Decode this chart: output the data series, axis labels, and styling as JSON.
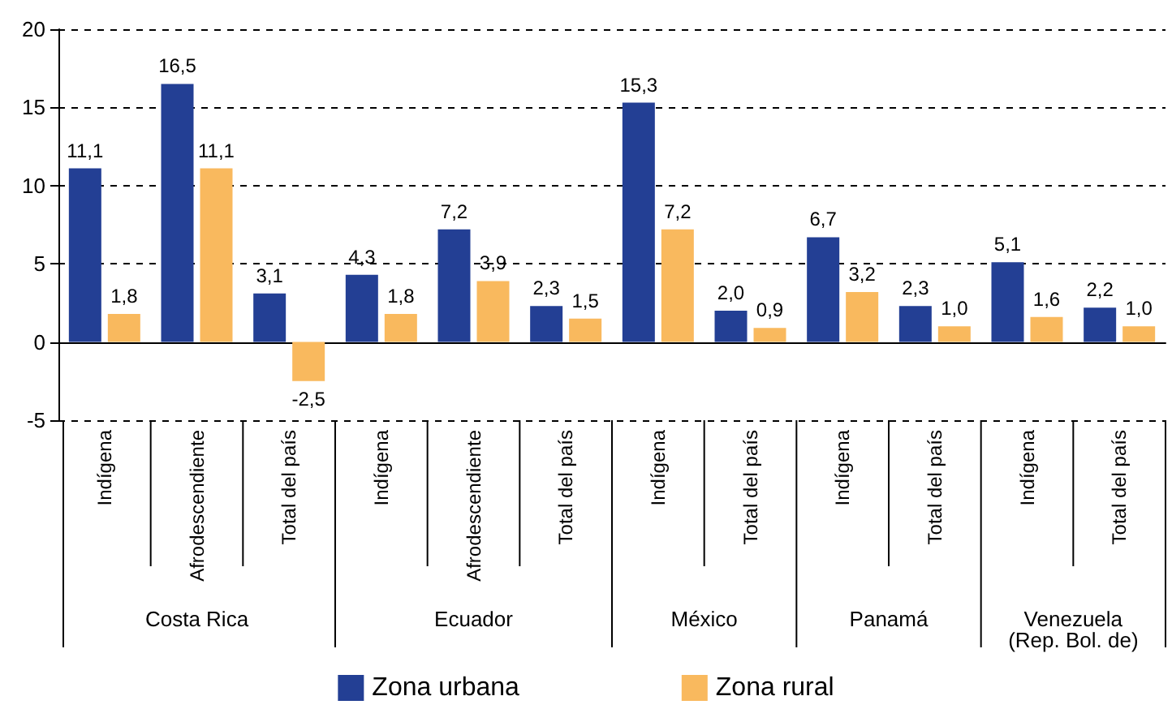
{
  "chart_data": {
    "type": "bar",
    "categories": [
      "Indígena",
      "Afrodescendiente",
      "Total del país",
      "Indígena",
      "Afrodescendiente",
      "Total del país",
      "Indígena",
      "Total del país",
      "Indígena",
      "Total del país",
      "Indígena",
      "Total del país"
    ],
    "series": [
      {
        "name": "Zona urbana",
        "color": "#233f94",
        "values": [
          11.1,
          16.5,
          3.1,
          4.3,
          7.2,
          2.3,
          15.3,
          2.0,
          6.7,
          2.3,
          5.1,
          2.2
        ],
        "value_labels": [
          "11,1",
          "16,5",
          "3,1",
          "4,3",
          "7,2",
          "2,3",
          "15,3",
          "2,0",
          "6,7",
          "2,3",
          "5,1",
          "2,2"
        ]
      },
      {
        "name": "Zona rural",
        "color": "#f9b95e",
        "values": [
          1.8,
          11.1,
          -2.5,
          1.8,
          3.9,
          1.5,
          7.2,
          0.9,
          3.2,
          1.0,
          1.6,
          1.0
        ],
        "value_labels": [
          "1,8",
          "11,1",
          "-2,5",
          "1,8",
          "3,9",
          "1,5",
          "7,2",
          "0,9",
          "3,2",
          "1,0",
          "1,6",
          "1,0"
        ]
      }
    ],
    "annotations": [
      "Costa Rica",
      "Ecuador",
      "México",
      "Panamá",
      "Venezuela\n(Rep. Bol. de)"
    ],
    "ylim": [
      -5,
      20
    ],
    "yticks": [
      -5,
      0,
      5,
      10,
      15,
      20
    ],
    "grid": "y",
    "legend": "bottom"
  }
}
